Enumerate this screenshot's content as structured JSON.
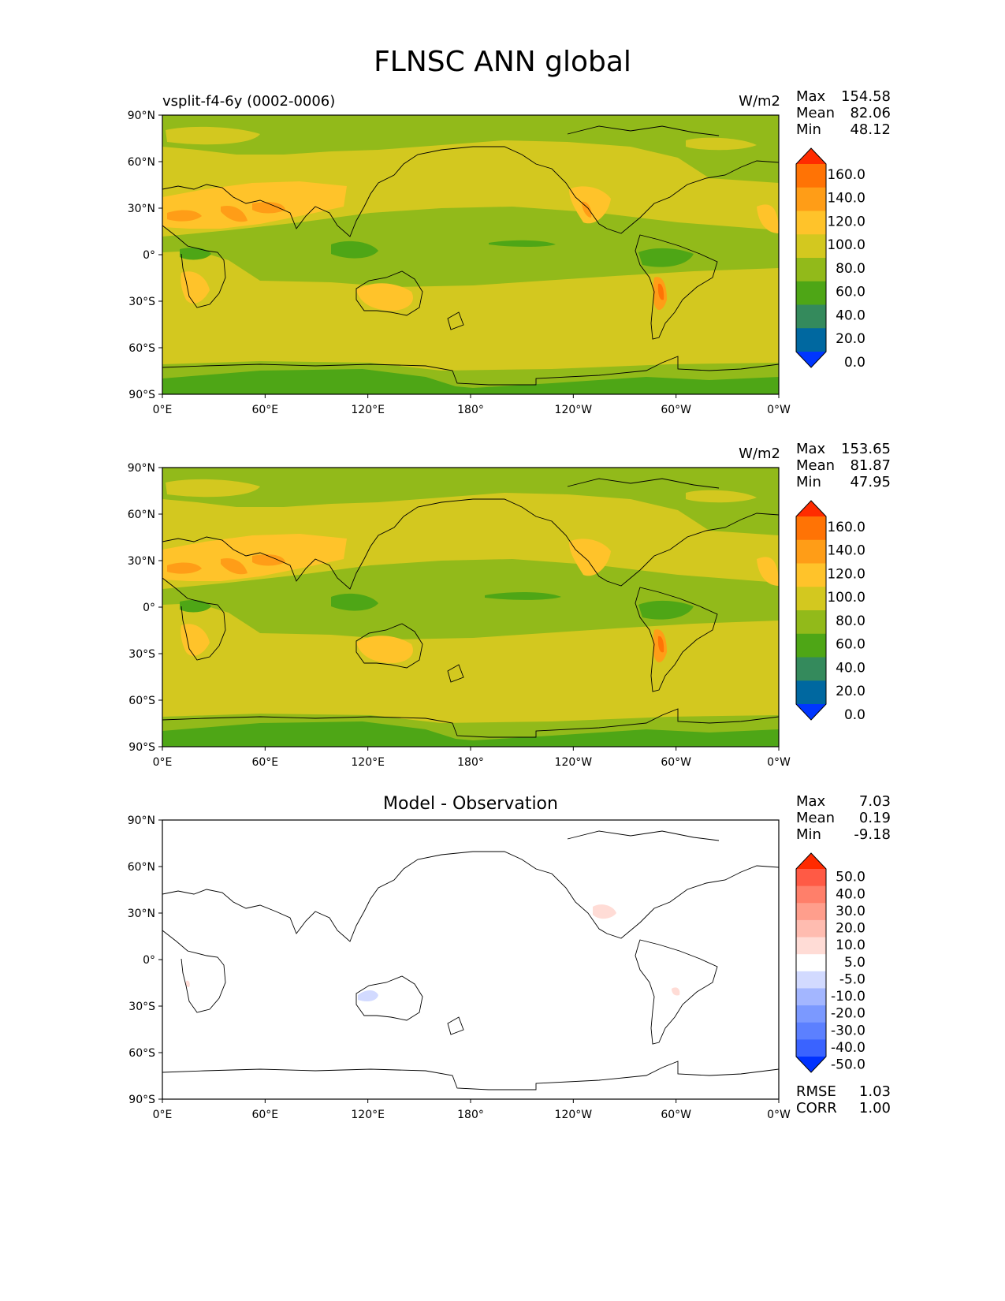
{
  "title": "FLNSC ANN global",
  "colors": {
    "levels_main": [
      "#0036ff",
      "#0068a0",
      "#348a5c",
      "#4ea616",
      "#92ba1a",
      "#d3c81f",
      "#ffc32a",
      "#ff9d17",
      "#ff7305",
      "#ff2c00"
    ],
    "levels_diff": [
      "#0032ff",
      "#3a63ff",
      "#5c80ff",
      "#7b99ff",
      "#a3b6ff",
      "#d2daff",
      "#ffffff",
      "#ffdcd6",
      "#ffbcb0",
      "#ff9e8c",
      "#ff7f6a",
      "#ff5a45",
      "#ff2a00"
    ],
    "coast": "#000000"
  },
  "panels": [
    {
      "title_left": "vsplit-f4-6y (0002-0006)",
      "title_center": "",
      "units": "W/m2",
      "stats": [
        {
          "label": "Max",
          "value": "154.58"
        },
        {
          "label": "Mean",
          "value": "82.06"
        },
        {
          "label": "Min",
          "value": "48.12"
        }
      ],
      "colorbar": [
        "160.0",
        "140.0",
        "120.0",
        "100.0",
        "80.0",
        "60.0",
        "40.0",
        "20.0",
        "0.0"
      ],
      "extra_stats": []
    },
    {
      "title_left": "",
      "title_center": "",
      "units": "W/m2",
      "stats": [
        {
          "label": "Max",
          "value": "153.65"
        },
        {
          "label": "Mean",
          "value": "81.87"
        },
        {
          "label": "Min",
          "value": "47.95"
        }
      ],
      "colorbar": [
        "160.0",
        "140.0",
        "120.0",
        "100.0",
        "80.0",
        "60.0",
        "40.0",
        "20.0",
        "0.0"
      ],
      "extra_stats": []
    },
    {
      "title_left": "",
      "title_center": "Model - Observation",
      "units": "",
      "stats": [
        {
          "label": "Max",
          "value": "7.03"
        },
        {
          "label": "Mean",
          "value": "0.19"
        },
        {
          "label": "Min",
          "value": "-9.18"
        }
      ],
      "colorbar": [
        "50.0",
        "40.0",
        "30.0",
        "20.0",
        "10.0",
        "5.0",
        "-5.0",
        "-10.0",
        "-20.0",
        "-30.0",
        "-40.0",
        "-50.0"
      ],
      "extra_stats": [
        {
          "label": "RMSE",
          "value": "1.03"
        },
        {
          "label": "CORR",
          "value": "1.00"
        }
      ]
    }
  ],
  "chart_data": {
    "type": "heatmap",
    "title": "FLNSC ANN global",
    "x_ticks": [
      "0°E",
      "60°E",
      "120°E",
      "180°",
      "120°W",
      "60°W",
      "0°W"
    ],
    "y_ticks": [
      "90°N",
      "60°N",
      "30°N",
      "0°",
      "30°S",
      "60°S",
      "90°S"
    ],
    "xlim": [
      0,
      360
    ],
    "ylim": [
      -90,
      90
    ],
    "grid": false
  }
}
